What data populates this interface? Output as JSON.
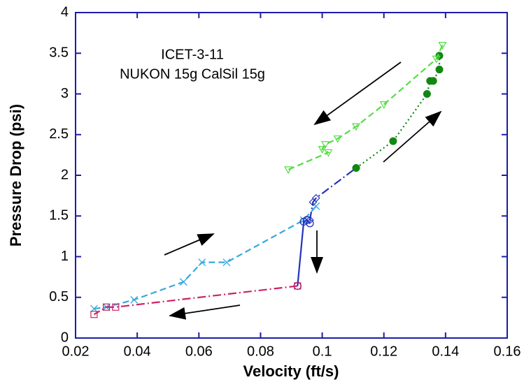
{
  "chart_data": {
    "type": "line",
    "xlabel": "Velocity (ft/s)",
    "ylabel": "Pressure Drop (psi)",
    "annotations": [
      "ICET-3-11",
      "NUKON 15g CalSil 15g"
    ],
    "xlim": [
      0.02,
      0.16
    ],
    "xticks": [
      0.02,
      0.04,
      0.06,
      0.08,
      0.1,
      0.12,
      0.14,
      0.16
    ],
    "ylim": [
      0,
      4
    ],
    "yticks": [
      0,
      0.5,
      1,
      1.5,
      2,
      2.5,
      3,
      3.5,
      4
    ],
    "axis_color": "#1c1ca8",
    "series": [
      {
        "color": "#33aadd",
        "dash": "dashed",
        "marker": "x",
        "x": [
          0.026,
          0.03,
          0.039,
          0.055,
          0.061,
          0.069,
          0.094,
          0.098
        ],
        "values": [
          0.36,
          0.38,
          0.47,
          0.69,
          0.93,
          0.93,
          1.45,
          1.62
        ]
      },
      {
        "color": "#2233bb",
        "dash": "solid",
        "marker": "circle",
        "x": [
          0.092,
          0.094,
          0.095,
          0.096
        ],
        "values": [
          0.64,
          1.43,
          1.45,
          1.41
        ]
      },
      {
        "color": "#2233bb",
        "dash": "dashdot",
        "marker": "diamond",
        "x": [
          0.096,
          0.097,
          0.098,
          0.111
        ],
        "values": [
          1.45,
          1.67,
          1.72,
          2.09
        ]
      },
      {
        "color": "#118811",
        "dash": "dotted",
        "marker": "filled-circle",
        "x": [
          0.111,
          0.123,
          0.134,
          0.135,
          0.136,
          0.138,
          0.138
        ],
        "values": [
          2.09,
          2.42,
          3.0,
          3.16,
          3.16,
          3.3,
          3.47
        ]
      },
      {
        "color": "#55dd44",
        "dash": "dashed",
        "marker": "triangle-down",
        "x": [
          0.139,
          0.137,
          0.12,
          0.111,
          0.105,
          0.101,
          0.1,
          0.102,
          0.089
        ],
        "values": [
          3.6,
          3.43,
          2.87,
          2.6,
          2.45,
          2.38,
          2.32,
          2.28,
          2.07
        ]
      },
      {
        "color": "#cc2266",
        "dash": "dashdot",
        "marker": "square",
        "x": [
          0.092,
          0.033,
          0.03,
          0.026
        ],
        "values": [
          0.64,
          0.38,
          0.38,
          0.29
        ]
      }
    ]
  }
}
